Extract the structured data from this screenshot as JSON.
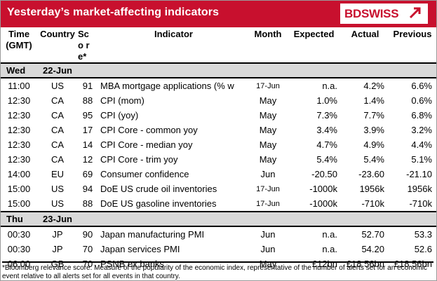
{
  "banner": {
    "title": "Yesterday’s market-affecting indicators",
    "logo_text": "BDSWISS",
    "brand_color": "#c8102e"
  },
  "headers": {
    "time": "Time (GMT)",
    "country": "Country",
    "score": "Sco re*",
    "indicator": "Indicator",
    "month": "Month",
    "expected": "Expected",
    "actual": "Actual",
    "previous": "Previous"
  },
  "days": [
    {
      "weekday": "Wed",
      "date": "22-Jun",
      "rows": [
        {
          "time": "11:00",
          "country": "US",
          "score": "91",
          "indicator": "MBA mortgage applications (% w",
          "month": "17-Jun",
          "expected": "n.a.",
          "actual": "4.2%",
          "previous": "6.6%"
        },
        {
          "time": "12:30",
          "country": "CA",
          "score": "88",
          "indicator": "CPI (mom)",
          "month": "May",
          "expected": "1.0%",
          "actual": "1.4%",
          "previous": "0.6%"
        },
        {
          "time": "12:30",
          "country": "CA",
          "score": "95",
          "indicator": "CPI (yoy)",
          "month": "May",
          "expected": "7.3%",
          "actual": "7.7%",
          "previous": "6.8%"
        },
        {
          "time": "12:30",
          "country": "CA",
          "score": "17",
          "indicator": "CPI Core - common yoy",
          "month": "May",
          "expected": "3.4%",
          "actual": "3.9%",
          "previous": "3.2%"
        },
        {
          "time": "12:30",
          "country": "CA",
          "score": "14",
          "indicator": "CPI Core - median yoy",
          "month": "May",
          "expected": "4.7%",
          "actual": "4.9%",
          "previous": "4.4%"
        },
        {
          "time": "12:30",
          "country": "CA",
          "score": "12",
          "indicator": "CPI Core - trim yoy",
          "month": "May",
          "expected": "5.4%",
          "actual": "5.4%",
          "previous": "5.1%"
        },
        {
          "time": "14:00",
          "country": "EU",
          "score": "69",
          "indicator": "Consumer confidence",
          "month": "Jun",
          "expected": "-20.50",
          "actual": "-23.60",
          "previous": "-21.10"
        },
        {
          "time": "15:00",
          "country": "US",
          "score": "94",
          "indicator": "DoE US crude oil inventories",
          "month": "17-Jun",
          "expected": "-1000k",
          "actual": "1956k",
          "previous": "1956k"
        },
        {
          "time": "15:00",
          "country": "US",
          "score": "88",
          "indicator": "DoE US gasoline inventories",
          "month": "17-Jun",
          "expected": "-1000k",
          "actual": "-710k",
          "previous": "-710k"
        }
      ]
    },
    {
      "weekday": "Thu",
      "date": "23-Jun",
      "rows": [
        {
          "time": "00:30",
          "country": "JP",
          "score": "90",
          "indicator": "Japan manufacturing PMI",
          "month": "Jun",
          "expected": "n.a.",
          "actual": "52.70",
          "previous": "53.3"
        },
        {
          "time": "00:30",
          "country": "JP",
          "score": "70",
          "indicator": "Japan services PMI",
          "month": "Jun",
          "expected": "n.a.",
          "actual": "54.20",
          "previous": "52.6"
        },
        {
          "time": "06:00",
          "country": "GB",
          "score": "70",
          "indicator": "PSNB ex banks",
          "month": "May",
          "expected": "£12bn",
          "actual": "£18.56bn",
          "previous": "£18.56bn"
        }
      ]
    }
  ],
  "footnote": "*Bloomberg relevance score:  Measure of the popularity of the economic index, representative of the number of alerts set for an economic event relative to all alerts set for all events in that country."
}
